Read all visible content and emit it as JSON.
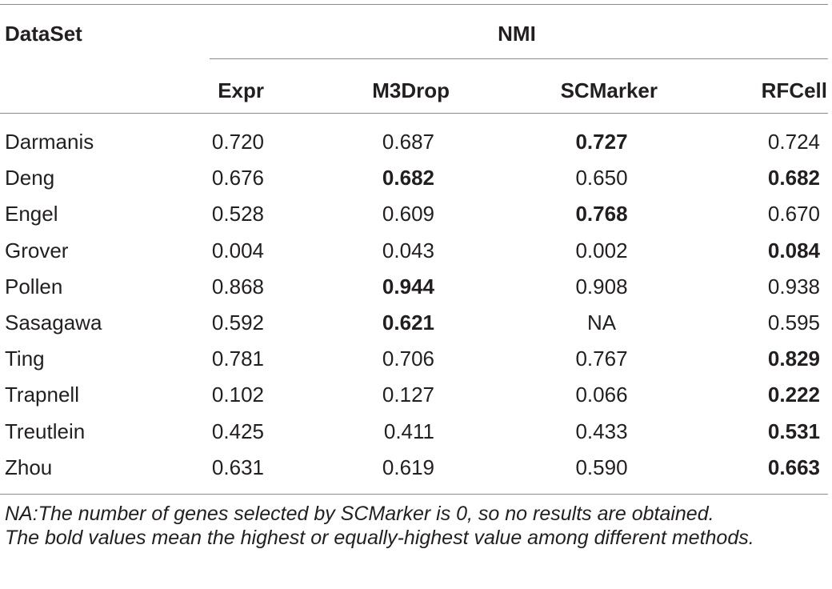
{
  "table": {
    "dataset_header": "DataSet",
    "group_header": "NMI",
    "columns": [
      "Expr",
      "M3Drop",
      "SCMarker",
      "RFCell"
    ],
    "rows": [
      {
        "name": "Darmanis",
        "values": [
          "0.720",
          "0.687",
          "0.727",
          "0.724"
        ],
        "bold": [
          false,
          false,
          true,
          false
        ]
      },
      {
        "name": "Deng",
        "values": [
          "0.676",
          "0.682",
          "0.650",
          "0.682"
        ],
        "bold": [
          false,
          true,
          false,
          true
        ]
      },
      {
        "name": "Engel",
        "values": [
          "0.528",
          "0.609",
          "0.768",
          "0.670"
        ],
        "bold": [
          false,
          false,
          true,
          false
        ]
      },
      {
        "name": "Grover",
        "values": [
          "0.004",
          "0.043",
          "0.002",
          "0.084"
        ],
        "bold": [
          false,
          false,
          false,
          true
        ]
      },
      {
        "name": "Pollen",
        "values": [
          "0.868",
          "0.944",
          "0.908",
          "0.938"
        ],
        "bold": [
          false,
          true,
          false,
          false
        ]
      },
      {
        "name": "Sasagawa",
        "values": [
          "0.592",
          "0.621",
          "NA",
          "0.595"
        ],
        "bold": [
          false,
          true,
          false,
          false
        ]
      },
      {
        "name": "Ting",
        "values": [
          "0.781",
          "0.706",
          "0.767",
          "0.829"
        ],
        "bold": [
          false,
          false,
          false,
          true
        ]
      },
      {
        "name": "Trapnell",
        "values": [
          "0.102",
          "0.127",
          "0.066",
          "0.222"
        ],
        "bold": [
          false,
          false,
          false,
          true
        ]
      },
      {
        "name": "Treutlein",
        "values": [
          "0.425",
          "0.411",
          "0.433",
          "0.531"
        ],
        "bold": [
          false,
          false,
          false,
          true
        ]
      },
      {
        "name": "Zhou",
        "values": [
          "0.631",
          "0.619",
          "0.590",
          "0.663"
        ],
        "bold": [
          false,
          false,
          false,
          true
        ]
      }
    ]
  },
  "notes": {
    "na_note": "NA:The number of genes selected by SCMarker is 0, so no results are obtained.",
    "bold_note": "The bold values mean the highest or equally-highest value among different methods."
  }
}
